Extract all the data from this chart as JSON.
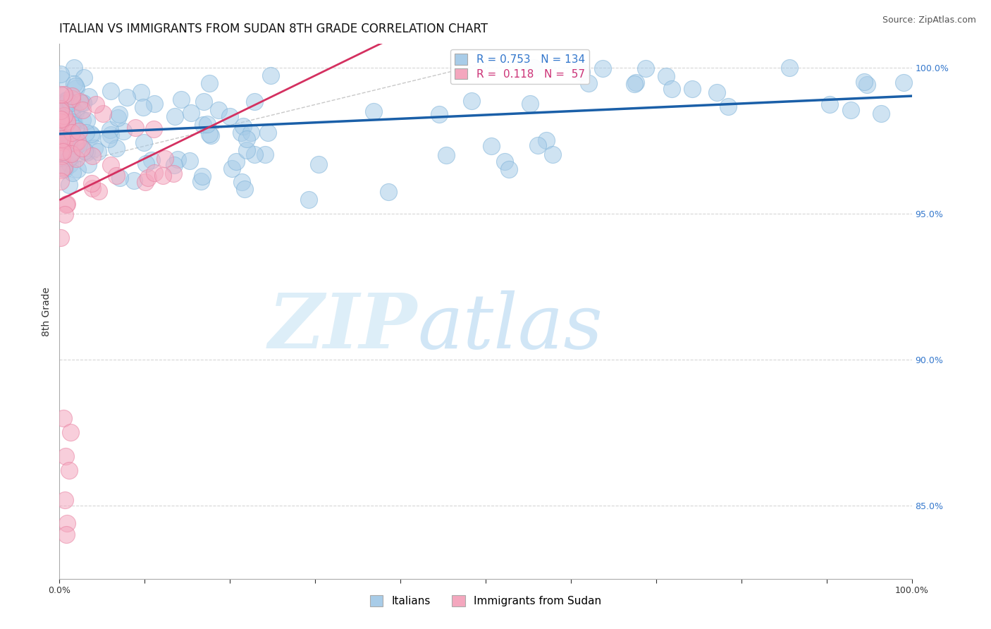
{
  "title": "ITALIAN VS IMMIGRANTS FROM SUDAN 8TH GRADE CORRELATION CHART",
  "source": "Source: ZipAtlas.com",
  "ylabel": "8th Grade",
  "x_range": [
    0.0,
    1.0
  ],
  "y_range": [
    0.825,
    1.008
  ],
  "y_ticks": [
    0.85,
    0.9,
    0.95,
    1.0
  ],
  "y_tick_labels": [
    "85.0%",
    "90.0%",
    "95.0%",
    "100.0%"
  ],
  "legend_blue_label": "R = 0.753   N = 134",
  "legend_pink_label": "R =  0.118   N =  57",
  "legend_bottom_blue": "Italians",
  "legend_bottom_pink": "Immigrants from Sudan",
  "blue_color": "#a8cce8",
  "blue_edge_color": "#7fb3d9",
  "pink_color": "#f4a7be",
  "pink_edge_color": "#e87fa0",
  "blue_line_color": "#1a5fa8",
  "pink_line_color": "#d43060",
  "diag_line_color": "#bbbbbb",
  "background_color": "#ffffff",
  "grid_color": "#cccccc",
  "title_fontsize": 12,
  "source_fontsize": 9,
  "tick_fontsize": 9,
  "legend_fontsize": 11
}
